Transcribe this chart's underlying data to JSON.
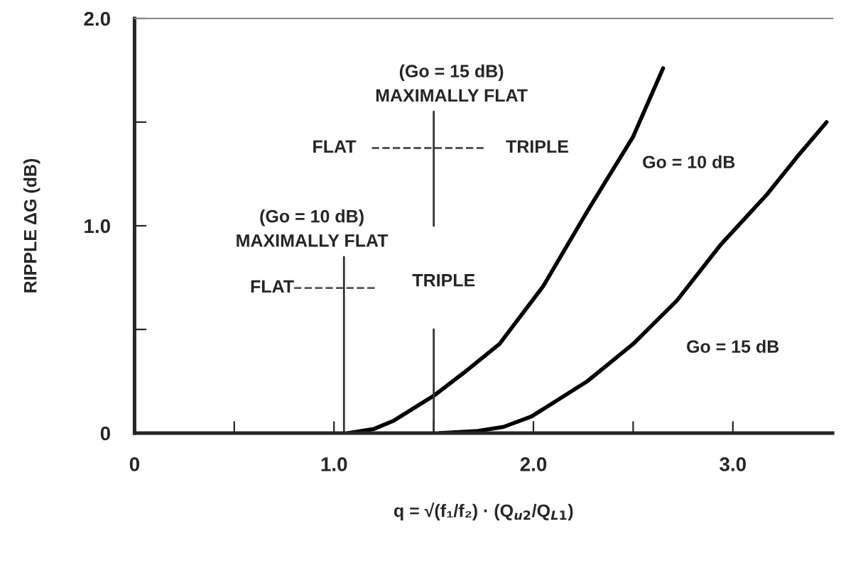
{
  "chart_data": {
    "type": "line",
    "xlabel": "q = √(f₁/f₂) · (Q$_{u2}$/Q$_{L1}$)",
    "ylabel": "RIPPLE ΔG (dB)",
    "xlim": [
      0,
      3.5
    ],
    "ylim": [
      0,
      2.0
    ],
    "xticks": [
      0,
      {
        "value": 0.5,
        "label": null
      },
      {
        "value": 1,
        "label": "1.0"
      },
      {
        "value": 1.5,
        "label": null
      },
      {
        "value": 2,
        "label": "2.0"
      },
      {
        "value": 2.5,
        "label": null
      },
      {
        "value": 3,
        "label": "3.0"
      }
    ],
    "yticks": [
      0,
      {
        "value": 0.5,
        "label": null
      },
      {
        "value": 1,
        "label": "1.0"
      },
      {
        "value": 1.5,
        "label": null
      },
      {
        "value": 2,
        "label": "2.0"
      }
    ],
    "grid": false,
    "legend": false,
    "marker": "none",
    "series": [
      {
        "color": "#000000",
        "line_style": "solid",
        "x": [
          1.07,
          1.2,
          1.3,
          1.4,
          1.5,
          1.65,
          1.83,
          2.05,
          2.27,
          2.5,
          2.65
        ],
        "values": [
          0,
          0.02,
          0.06,
          0.12,
          0.18,
          0.29,
          0.43,
          0.71,
          1.07,
          1.43,
          1.76
        ]
      },
      {
        "color": "#000000",
        "line_style": "solid",
        "x": [
          1.53,
          1.72,
          1.85,
          1.99,
          2.27,
          2.5,
          2.72,
          2.94,
          3.17,
          3.32,
          3.47
        ],
        "values": [
          0,
          0.01,
          0.03,
          0.08,
          0.25,
          0.43,
          0.64,
          0.91,
          1.15,
          1.33,
          1.5
        ]
      },
      {
        "color": "#333333",
        "line_style": "solid",
        "x": [
          1.05,
          1.05
        ],
        "values": [
          0,
          0.85
        ]
      },
      {
        "color": "#333333",
        "line_style": "solid",
        "x": [
          1.5,
          1.5
        ],
        "values": [
          0,
          0.5
        ]
      },
      {
        "color": "#333333",
        "line_style": "solid",
        "x": [
          1.5,
          1.5
        ],
        "values": [
          1.0,
          1.55
        ]
      },
      {
        "color": "#555555",
        "line_style": "dashed",
        "x": [
          0.8,
          1.21
        ],
        "values": [
          0.7,
          0.7
        ]
      },
      {
        "color": "#555555",
        "line_style": "dashed",
        "x": [
          1.19,
          1.75
        ],
        "values": [
          1.375,
          1.375
        ]
      }
    ],
    "annotations": [
      "(Go = 15 dB)\nMAXIMALLY FLAT",
      "FLAT",
      "TRIPLE",
      "(Go = 10 dB)\nMAXIMALLY FLAT",
      "FLAT",
      "TRIPLE",
      "Go = 10 dB",
      "Go = 15 dB"
    ]
  }
}
